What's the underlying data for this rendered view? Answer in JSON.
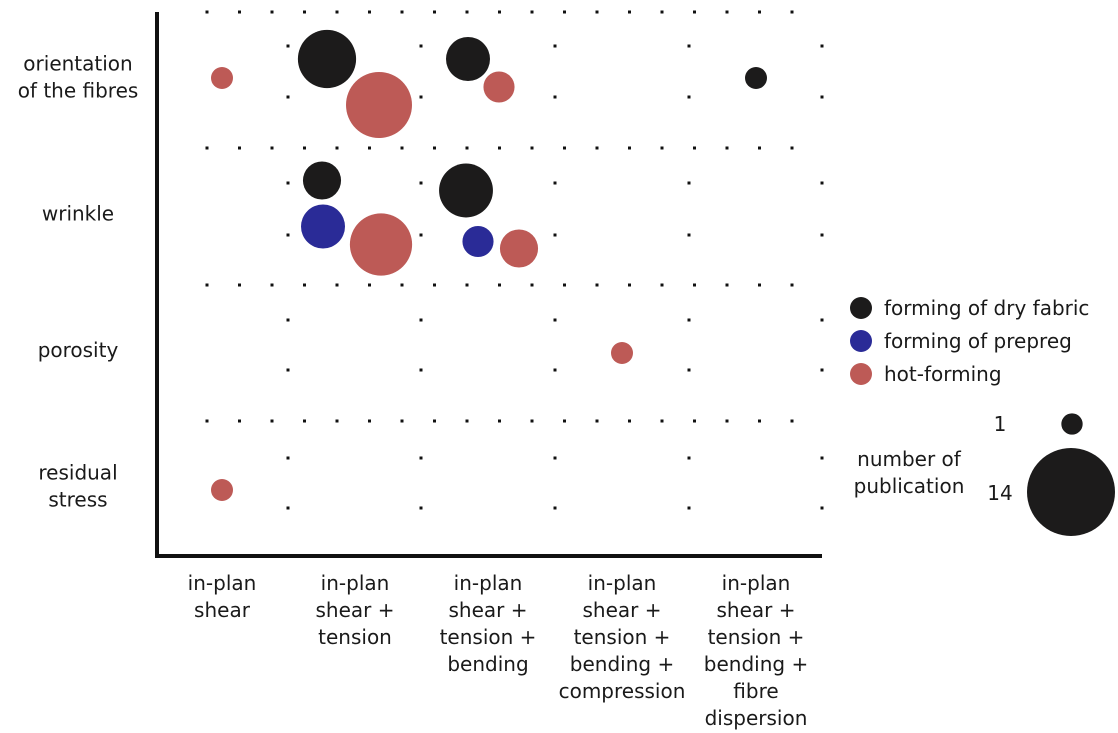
{
  "chart_data": {
    "type": "scatter",
    "subtype": "bubble-matrix",
    "x_categories": [
      [
        "in-plan",
        "shear"
      ],
      [
        "in-plan",
        "shear +",
        "tension"
      ],
      [
        "in-plan",
        "shear +",
        "tension +",
        "bending"
      ],
      [
        "in-plan",
        "shear +",
        "tension +",
        "bending +",
        "compression"
      ],
      [
        "in-plan",
        "shear +",
        "tension +",
        "bending +",
        "fibre",
        "dispersion"
      ]
    ],
    "y_categories": [
      [
        "orientation",
        "of the fibres"
      ],
      [
        "wrinkle"
      ],
      [
        "porosity"
      ],
      [
        "residual",
        "stress"
      ]
    ],
    "series": [
      {
        "name": "forming of dry fabric",
        "color": "#1c1b1b"
      },
      {
        "name": "forming of prepreg",
        "color": "#2a2b97"
      },
      {
        "name": "hot-forming",
        "color": "#bd5a56"
      }
    ],
    "points": [
      {
        "x": 1,
        "y": 0,
        "series": 2,
        "count": 1
      },
      {
        "x": 2,
        "y": 0,
        "series": 0,
        "count": 7
      },
      {
        "x": 2,
        "y": 0,
        "series": 2,
        "count": 9
      },
      {
        "x": 3,
        "y": 0,
        "series": 0,
        "count": 4
      },
      {
        "x": 3,
        "y": 0,
        "series": 2,
        "count": 2
      },
      {
        "x": 5,
        "y": 0,
        "series": 0,
        "count": 1
      },
      {
        "x": 2,
        "y": 1,
        "series": 0,
        "count": 3
      },
      {
        "x": 2,
        "y": 1,
        "series": 1,
        "count": 4
      },
      {
        "x": 2,
        "y": 1,
        "series": 2,
        "count": 8
      },
      {
        "x": 3,
        "y": 1,
        "series": 0,
        "count": 6
      },
      {
        "x": 3,
        "y": 1,
        "series": 1,
        "count": 2
      },
      {
        "x": 3,
        "y": 1,
        "series": 2,
        "count": 3
      },
      {
        "x": 4,
        "y": 2,
        "series": 2,
        "count": 1
      },
      {
        "x": 1,
        "y": 3,
        "series": 2,
        "count": 1
      }
    ],
    "size_legend": {
      "title": [
        "number of",
        "publication"
      ],
      "min_label": "1",
      "max_label": "14",
      "min_value": 1,
      "max_value": 14
    },
    "grid": "dotted",
    "legend_position": "right"
  }
}
